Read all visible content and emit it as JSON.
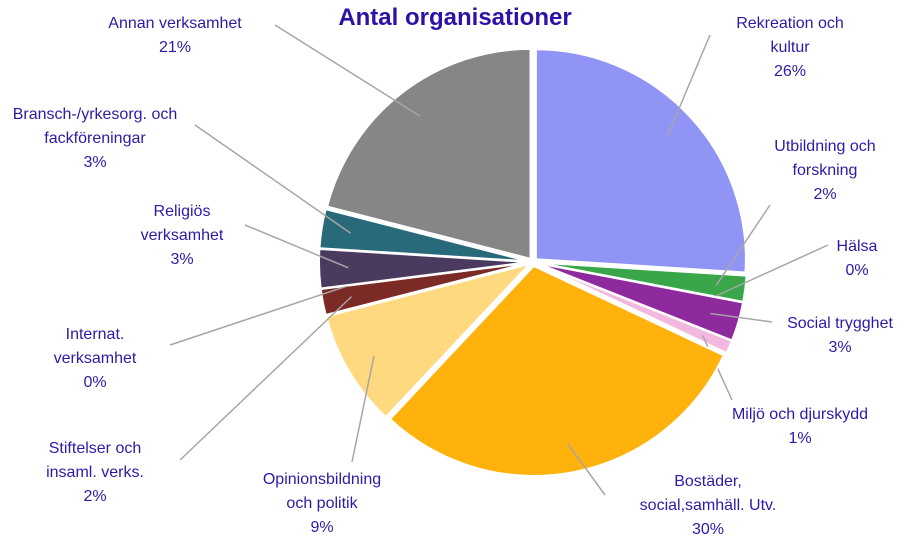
{
  "chart_data": {
    "type": "pie",
    "title": "Antal organisationer",
    "categories": [
      "Rekreation och kultur",
      "Utbildning och forskning",
      "Hälsa",
      "Social trygghet",
      "Miljö och djurskydd",
      "Bostäder, social,samhäll. Utv.",
      "Opinionsbildning och politik",
      "Stiftelser och insaml. verks.",
      "Internat. verksamhet",
      "Religiös verksamhet",
      "Bransch-/yrkesorg. och fackföreningar",
      "Annan verksamhet"
    ],
    "values": [
      26,
      2,
      0,
      3,
      1,
      30,
      9,
      2,
      0,
      3,
      3,
      21
    ],
    "value_labels": [
      "26%",
      "2%",
      "0%",
      "3%",
      "1%",
      "30%",
      "9%",
      "2%",
      "0%",
      "3%",
      "3%",
      "21%"
    ],
    "colors": [
      "#8f94f5",
      "#3aa64a",
      "#2f8f9a",
      "#8e2a9e",
      "#f2b8e0",
      "#ffb20c",
      "#ffd980",
      "#7b2a25",
      "#b0a070",
      "#4a3a5e",
      "#286a7a",
      "#868686"
    ]
  }
}
